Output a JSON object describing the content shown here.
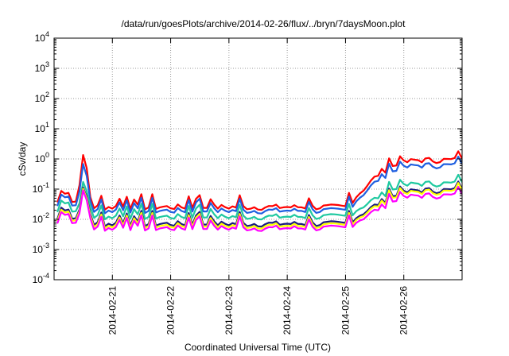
{
  "chart_data": {
    "type": "line",
    "title": "/data/run/goesPlots/archive/2014-02-26/flux/../bryn/7daysMoon.plot",
    "xlabel": "Coordinated Universal Time (UTC)",
    "ylabel": "cSv/day",
    "yscale": "log",
    "ylim": [
      0.0001,
      10000
    ],
    "xlim": [
      "2014-02-20",
      "2014-02-27"
    ],
    "grid": true,
    "x_ticks": [
      "2014-02-21",
      "2014-02-22",
      "2014-02-23",
      "2014-02-24",
      "2014-02-25",
      "2014-02-26"
    ],
    "y_ticks": [
      {
        "base": "10",
        "exp": "4"
      },
      {
        "base": "10",
        "exp": "3"
      },
      {
        "base": "10",
        "exp": "2"
      },
      {
        "base": "10",
        "exp": "1"
      },
      {
        "base": "10",
        "exp": "0"
      },
      {
        "base": "10",
        "exp": "-1"
      },
      {
        "base": "10",
        "exp": "-2"
      },
      {
        "base": "10",
        "exp": "-3"
      },
      {
        "base": "10",
        "exp": "-4"
      }
    ],
    "series": [
      {
        "color": "#ff0000",
        "spike": 1.2,
        "quiet": 0.025,
        "active": 0.9
      },
      {
        "color": "#1f5fe0",
        "spike": 0.6,
        "quiet": 0.019,
        "active": 0.6
      },
      {
        "color": "#1fc9a0",
        "spike": 0.15,
        "quiet": 0.012,
        "active": 0.15
      },
      {
        "color": "#1a1a80",
        "spike": 0.1,
        "quiet": 0.007,
        "active": 0.09
      },
      {
        "color": "#ffff00",
        "spike": 0.09,
        "quiet": 0.006,
        "active": 0.08
      },
      {
        "color": "#ff00ff",
        "spike": 0.08,
        "quiet": 0.005,
        "active": 0.06
      }
    ]
  }
}
